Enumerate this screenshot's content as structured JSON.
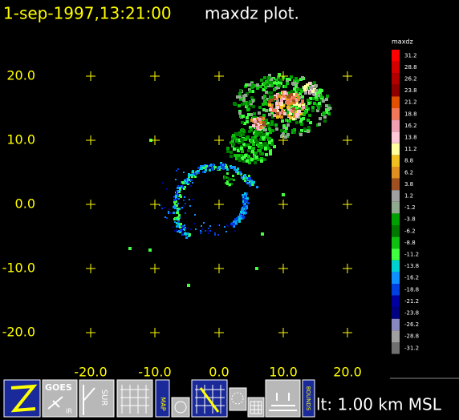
{
  "header": {
    "timestamp": "1-sep-1997,13:21:00",
    "title": "maxdz plot."
  },
  "plot": {
    "xlim": [
      -25,
      25
    ],
    "ylim": [
      -25,
      25
    ],
    "xticks": [
      {
        "value": -20,
        "label": "-20.0"
      },
      {
        "value": -10,
        "label": "-10.0"
      },
      {
        "value": 0,
        "label": "0.0"
      },
      {
        "value": 10,
        "label": "10.0"
      },
      {
        "value": 20,
        "label": "20.0"
      }
    ],
    "yticks": [
      {
        "value": 20,
        "label": "20.0"
      },
      {
        "value": 10,
        "label": "10.0"
      },
      {
        "value": 0,
        "label": "0.0"
      },
      {
        "value": -10,
        "label": "-10.0"
      },
      {
        "value": -20,
        "label": "-20.0"
      }
    ]
  },
  "colorbar": {
    "title": "maxdz",
    "levels": [
      31.2,
      28.8,
      26.2,
      23.8,
      21.2,
      18.8,
      16.2,
      13.8,
      11.2,
      8.8,
      6.2,
      3.8,
      1.2,
      -1.2,
      -3.8,
      -6.2,
      -8.8,
      -11.2,
      -13.8,
      -16.2,
      -18.8,
      -21.2,
      -23.8,
      -26.2,
      -28.8,
      -31.2
    ],
    "colors": [
      "#ff0000",
      "#d40000",
      "#b00000",
      "#8c0000",
      "#e05000",
      "#f07858",
      "#f0a0b0",
      "#ffc8d8",
      "#ffffa0",
      "#f0c020",
      "#e09020",
      "#a05020",
      "#a0a0a0",
      "#90a890",
      "#00a000",
      "#007800",
      "#10c010",
      "#40ff40",
      "#00d0d0",
      "#1090ff",
      "#0040e0",
      "#0000a0",
      "#000080",
      "#8888c0",
      "#a0a0a0",
      "#707070"
    ]
  },
  "toolbar": {
    "goes": "GOES",
    "ir": "IR",
    "sur": "SUR",
    "map": "MAP",
    "bounds": "BOUNDS"
  },
  "status": {
    "altitude": "lt: 1.00 km MSL"
  }
}
